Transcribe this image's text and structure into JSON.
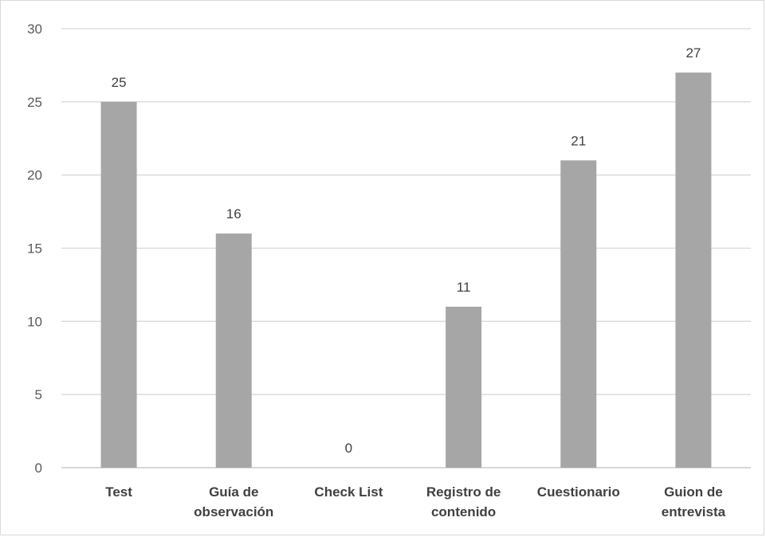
{
  "chart_data": {
    "type": "bar",
    "title": "",
    "xlabel": "",
    "ylabel": "",
    "categories": [
      [
        "Test"
      ],
      [
        "Guía de",
        "observación"
      ],
      [
        "Check List"
      ],
      [
        "Registro de",
        "contenido"
      ],
      [
        "Cuestionario"
      ],
      [
        "Guion de",
        "entrevista"
      ]
    ],
    "values": [
      25,
      16,
      0,
      11,
      21,
      27
    ],
    "ylim": [
      0,
      30
    ],
    "yticks": [
      0,
      5,
      10,
      15,
      20,
      25,
      30
    ],
    "grid": true,
    "legend": "none",
    "colors": {
      "bar": "#a6a6a6",
      "grid": "#d9d9d9",
      "axis": "#bfbfbf"
    }
  }
}
